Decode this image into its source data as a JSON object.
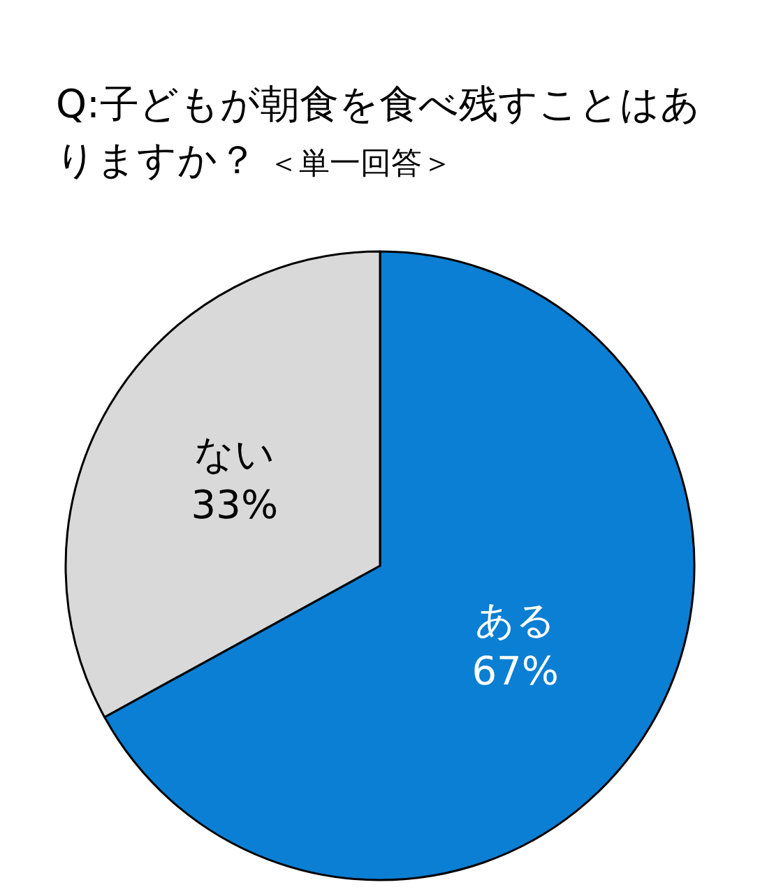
{
  "chart_data": {
    "type": "pie",
    "title": "Q:子どもが朝食を食べ残すことはありますか？",
    "subtitle": "＜単一回答＞",
    "categories": [
      "ある",
      "ない"
    ],
    "values": [
      67,
      33
    ],
    "value_labels": [
      "67%",
      "33%"
    ],
    "colors": [
      "#0b7fd3",
      "#d9d9d9"
    ],
    "legend": false
  }
}
